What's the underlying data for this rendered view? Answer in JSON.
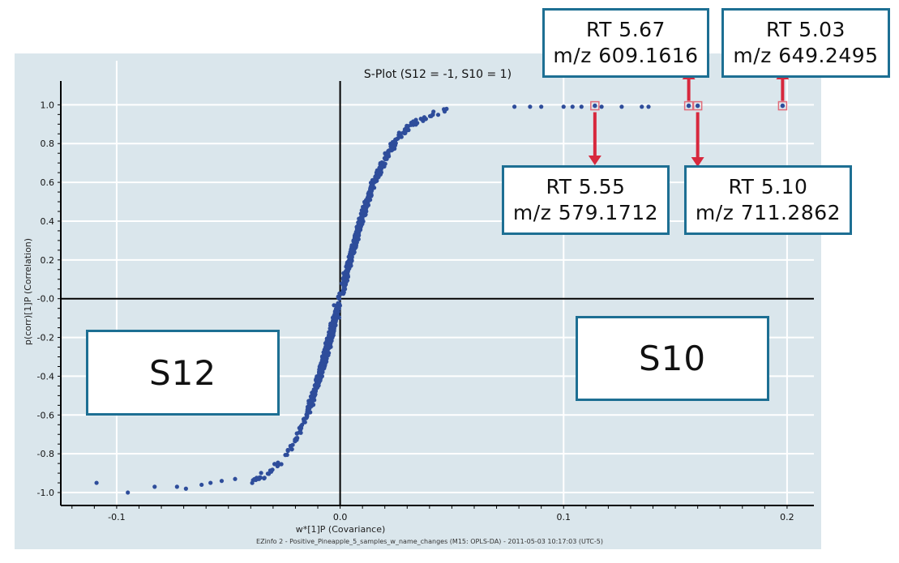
{
  "chart_data": {
    "type": "scatter",
    "title": "S-Plot (S12 = -1, S10 = 1)",
    "xlabel": "w*[1]P (Covariance)",
    "ylabel": "p(corr)[1]P (Correlation)",
    "footer": "EZinfo 2 - Positive_Pineapple_5_samples_w_name_changes (M15: OPLS-DA) - 2011-05-03 10:17:03 (UTC-5)",
    "xlim": [
      -0.125,
      0.212
    ],
    "ylim": [
      -1.05,
      1.06
    ],
    "x_ticks": [
      -0.1,
      0,
      0.1,
      0.2
    ],
    "x_tick_labels": [
      "-0.1",
      "0.0",
      "0.1",
      "0.2"
    ],
    "y_ticks": [
      -1.0,
      -0.8,
      -0.6,
      -0.4,
      -0.2,
      0.0,
      0.2,
      0.4,
      0.6,
      0.8,
      1.0
    ],
    "y_tick_labels": [
      "-1.0",
      "-0.8",
      "-0.6",
      "-0.4",
      "-0.2",
      "-0.0",
      "0.2",
      "0.4",
      "0.6",
      "0.8",
      "1.0"
    ],
    "grid": true,
    "point_color": "#2e4d9b",
    "curve_description": "dense sigmoid cloud of ~1500 points: p(corr) ≈ tanh(w*/0.022)",
    "outliers": [
      {
        "x": -0.109,
        "y": -0.95
      },
      {
        "x": -0.095,
        "y": -1.0
      },
      {
        "x": -0.083,
        "y": -0.97
      },
      {
        "x": -0.073,
        "y": -0.97
      },
      {
        "x": -0.069,
        "y": -0.98
      },
      {
        "x": -0.062,
        "y": -0.96
      },
      {
        "x": -0.058,
        "y": -0.95
      },
      {
        "x": -0.053,
        "y": -0.94
      },
      {
        "x": -0.047,
        "y": -0.93
      },
      {
        "x": 0.078,
        "y": 0.99
      },
      {
        "x": 0.085,
        "y": 0.99
      },
      {
        "x": 0.09,
        "y": 0.99
      },
      {
        "x": 0.1,
        "y": 0.99
      },
      {
        "x": 0.104,
        "y": 0.99
      },
      {
        "x": 0.108,
        "y": 0.99
      },
      {
        "x": 0.117,
        "y": 0.99
      },
      {
        "x": 0.126,
        "y": 0.99
      },
      {
        "x": 0.135,
        "y": 0.99
      },
      {
        "x": 0.138,
        "y": 0.99
      }
    ],
    "highlighted_points": [
      {
        "x": 0.114,
        "y": 0.995,
        "rt": "RT 5.55",
        "mz": "m/z 579.1712"
      },
      {
        "x": 0.156,
        "y": 0.995,
        "rt": "RT 5.67",
        "mz": "m/z 609.1616"
      },
      {
        "x": 0.16,
        "y": 0.995,
        "rt": "RT 5.10",
        "mz": "m/z 711.2862"
      },
      {
        "x": 0.198,
        "y": 0.995,
        "rt": "RT 5.03",
        "mz": "m/z 649.2495"
      }
    ]
  },
  "callouts": [
    {
      "rt": "RT 5.67",
      "mz": "m/z 609.1616"
    },
    {
      "rt": "RT 5.03",
      "mz": "m/z 649.2495"
    },
    {
      "rt": "RT 5.55",
      "mz": "m/z 579.1712"
    },
    {
      "rt": "RT 5.10",
      "mz": "m/z 711.2862"
    }
  ],
  "regions": {
    "left_label": "S12",
    "right_label": "S10"
  },
  "colors": {
    "plot_background": "#dae6ec",
    "grid": "#ffffff",
    "axis": "#000000",
    "points": "#2e4d9b",
    "arrows": "#d7283d",
    "box_border": "#1d6f93",
    "highlight_square": "#e06c7a"
  }
}
